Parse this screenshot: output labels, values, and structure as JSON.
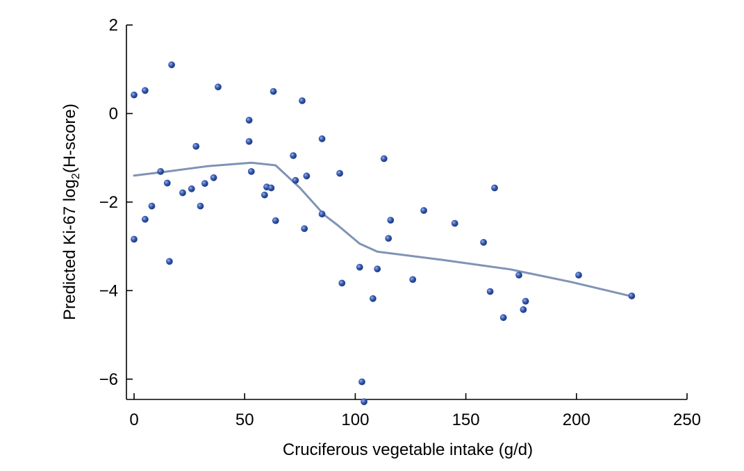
{
  "chart_data": {
    "type": "scatter",
    "title": "",
    "xlabel": "Cruciferous vegetable intake (g/d)",
    "ylabel_prefix": "Predicted Ki-67 log",
    "ylabel_sub": "2",
    "ylabel_suffix": "(H-score)",
    "xlim": [
      0,
      250
    ],
    "ylim": [
      -6.6,
      2
    ],
    "x_ticks": [
      0,
      50,
      100,
      150,
      200,
      250
    ],
    "x_tick_labels": [
      "0",
      "50",
      "100",
      "150",
      "200",
      "250"
    ],
    "y_ticks": [
      2,
      0,
      -2,
      -4,
      -6
    ],
    "y_tick_labels": [
      "2",
      "0",
      "−2",
      "−4",
      "−6"
    ],
    "grid": false,
    "point_color": "#2c4fa0",
    "trend_color": "#7f93b5",
    "points": [
      {
        "x": 0,
        "y": 0.42
      },
      {
        "x": 0,
        "y": -2.84
      },
      {
        "x": 5,
        "y": 0.52
      },
      {
        "x": 5,
        "y": -2.39
      },
      {
        "x": 8,
        "y": -2.09
      },
      {
        "x": 12,
        "y": -1.31
      },
      {
        "x": 15,
        "y": -1.57
      },
      {
        "x": 16,
        "y": -3.34
      },
      {
        "x": 17,
        "y": 1.1
      },
      {
        "x": 22,
        "y": -1.79
      },
      {
        "x": 26,
        "y": -1.7
      },
      {
        "x": 28,
        "y": -0.74
      },
      {
        "x": 30,
        "y": -2.09
      },
      {
        "x": 32,
        "y": -1.58
      },
      {
        "x": 36,
        "y": -1.45
      },
      {
        "x": 38,
        "y": 0.6
      },
      {
        "x": 52,
        "y": -0.15
      },
      {
        "x": 52,
        "y": -0.63
      },
      {
        "x": 53,
        "y": -1.31
      },
      {
        "x": 59,
        "y": -1.84
      },
      {
        "x": 60,
        "y": -1.66
      },
      {
        "x": 62,
        "y": -1.68
      },
      {
        "x": 63,
        "y": 0.5
      },
      {
        "x": 64,
        "y": -2.42
      },
      {
        "x": 72,
        "y": -0.95
      },
      {
        "x": 73,
        "y": -1.51
      },
      {
        "x": 76,
        "y": 0.29
      },
      {
        "x": 77,
        "y": -2.6
      },
      {
        "x": 78,
        "y": -1.41
      },
      {
        "x": 85,
        "y": -0.57
      },
      {
        "x": 85,
        "y": -2.27
      },
      {
        "x": 93,
        "y": -1.35
      },
      {
        "x": 94,
        "y": -3.83
      },
      {
        "x": 102,
        "y": -3.47
      },
      {
        "x": 103,
        "y": -6.06
      },
      {
        "x": 104,
        "y": -6.51
      },
      {
        "x": 108,
        "y": -4.18
      },
      {
        "x": 110,
        "y": -3.51
      },
      {
        "x": 113,
        "y": -1.02
      },
      {
        "x": 115,
        "y": -2.82
      },
      {
        "x": 116,
        "y": -2.41
      },
      {
        "x": 126,
        "y": -3.75
      },
      {
        "x": 131,
        "y": -2.19
      },
      {
        "x": 145,
        "y": -2.48
      },
      {
        "x": 158,
        "y": -2.91
      },
      {
        "x": 161,
        "y": -4.02
      },
      {
        "x": 163,
        "y": -1.68
      },
      {
        "x": 167,
        "y": -4.61
      },
      {
        "x": 174,
        "y": -3.65
      },
      {
        "x": 176,
        "y": -4.43
      },
      {
        "x": 177,
        "y": -4.24
      },
      {
        "x": 201,
        "y": -3.65
      },
      {
        "x": 225,
        "y": -4.12
      }
    ],
    "trend_line": [
      {
        "x": 0,
        "y": -1.4
      },
      {
        "x": 15,
        "y": -1.31
      },
      {
        "x": 33,
        "y": -1.19
      },
      {
        "x": 53,
        "y": -1.11
      },
      {
        "x": 64,
        "y": -1.17
      },
      {
        "x": 75,
        "y": -1.68
      },
      {
        "x": 86,
        "y": -2.29
      },
      {
        "x": 92,
        "y": -2.52
      },
      {
        "x": 102,
        "y": -2.94
      },
      {
        "x": 110,
        "y": -3.12
      },
      {
        "x": 140,
        "y": -3.31
      },
      {
        "x": 170,
        "y": -3.52
      },
      {
        "x": 198,
        "y": -3.81
      },
      {
        "x": 225,
        "y": -4.13
      }
    ]
  }
}
